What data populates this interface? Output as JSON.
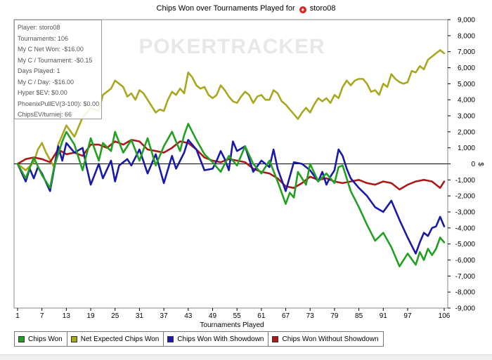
{
  "chart_data": {
    "type": "line",
    "title": "Chips Won over Tournaments Played for",
    "player_name": "storo08",
    "watermark": "POKERTRACKER",
    "xlabel": "Tournaments Played",
    "ylabel": "$",
    "xlim": [
      1,
      106
    ],
    "ylim": [
      -9000,
      9000
    ],
    "x_ticks": [
      1,
      7,
      13,
      19,
      25,
      31,
      37,
      43,
      49,
      55,
      61,
      67,
      73,
      79,
      85,
      91,
      97,
      106
    ],
    "y_ticks": [
      -9000,
      -8000,
      -7000,
      -6000,
      -5000,
      -4000,
      -3000,
      -2000,
      -1000,
      0,
      1000,
      2000,
      3000,
      4000,
      5000,
      6000,
      7000,
      8000,
      9000
    ],
    "y_tick_labels": [
      "-9,000",
      "-8,000",
      "-7,000",
      "-6,000",
      "-5,000",
      "-4,000",
      "-3,000",
      "-2,000",
      "-1,000",
      "0",
      "1,000",
      "2,000",
      "3,000",
      "4,000",
      "5,000",
      "6,000",
      "7,000",
      "8,000",
      "9,000"
    ],
    "series": [
      {
        "name": "Chips Won",
        "color": "#22a022",
        "x": [
          1,
          3,
          5,
          7,
          9,
          10,
          12,
          13,
          15,
          17,
          19,
          21,
          22,
          24,
          25,
          27,
          29,
          31,
          33,
          35,
          37,
          39,
          41,
          42,
          43,
          45,
          47,
          49,
          51,
          53,
          55,
          57,
          59,
          61,
          63,
          65,
          67,
          68,
          69,
          70,
          72,
          73,
          75,
          77,
          79,
          80,
          81,
          83,
          85,
          87,
          89,
          91,
          93,
          95,
          97,
          99,
          100,
          101,
          102,
          103,
          104,
          105,
          106
        ],
        "values": [
          0,
          -900,
          400,
          -700,
          -1500,
          -200,
          1400,
          2000,
          1200,
          -400,
          1600,
          200,
          1300,
          800,
          2000,
          700,
          1500,
          200,
          1600,
          -100,
          1100,
          2000,
          800,
          1800,
          2500,
          1500,
          600,
          100,
          -500,
          500,
          -100,
          1100,
          0,
          -600,
          200,
          -1100,
          -2500,
          -1800,
          -2100,
          -500,
          -1300,
          0,
          -1100,
          -600,
          -1200,
          -200,
          -100,
          -1700,
          -2700,
          -3800,
          -4800,
          -4300,
          -5200,
          -6400,
          -5600,
          -6300,
          -5500,
          -6000,
          -5300,
          -5700,
          -5300,
          -4600,
          -4900
        ]
      },
      {
        "name": "Net Expected Chips Won",
        "color": "#a8a820",
        "x": [
          1,
          3,
          5,
          6,
          7,
          8,
          10,
          11,
          13,
          15,
          17,
          18,
          19,
          21,
          22,
          24,
          25,
          27,
          28,
          29,
          30,
          31,
          32,
          34,
          35,
          36,
          37,
          38,
          39,
          40,
          41,
          42,
          43,
          44,
          45,
          46,
          47,
          48,
          49,
          50,
          51,
          52,
          53,
          54,
          55,
          56,
          57,
          58,
          59,
          60,
          61,
          62,
          63,
          64,
          65,
          66,
          67,
          68,
          69,
          70,
          71,
          72,
          73,
          74,
          75,
          76,
          77,
          78,
          79,
          80,
          81,
          82,
          83,
          84,
          85,
          86,
          87,
          88,
          89,
          90,
          91,
          92,
          93,
          94,
          95,
          96,
          97,
          98,
          99,
          100,
          101,
          102,
          103,
          104,
          105,
          106
        ],
        "values": [
          0,
          -400,
          100,
          900,
          1300,
          700,
          -200,
          1200,
          2400,
          1700,
          2900,
          3200,
          3500,
          3300,
          4300,
          4700,
          5200,
          4800,
          4200,
          4400,
          4000,
          4600,
          4400,
          3600,
          3200,
          3400,
          3300,
          4000,
          4500,
          4300,
          4700,
          4400,
          5700,
          5400,
          4900,
          4700,
          4800,
          4300,
          4100,
          4300,
          4900,
          4600,
          4200,
          3900,
          3800,
          4200,
          4500,
          4300,
          3800,
          4200,
          4300,
          4000,
          4000,
          4600,
          4400,
          3900,
          3700,
          3400,
          3100,
          2800,
          3200,
          3500,
          3200,
          3700,
          4100,
          3900,
          4100,
          3800,
          4300,
          4100,
          4800,
          5200,
          4900,
          5200,
          5300,
          5300,
          5000,
          4500,
          4600,
          4300,
          5000,
          4800,
          5600,
          5300,
          5100,
          5000,
          5100,
          5800,
          5700,
          6100,
          5900,
          6500,
          6700,
          6900,
          7100,
          6900
        ]
      },
      {
        "name": "Chips Won With Showdown",
        "color": "#1a1aa8",
        "x": [
          1,
          3,
          4,
          5,
          6,
          7,
          9,
          11,
          12,
          13,
          15,
          17,
          18,
          19,
          21,
          22,
          24,
          25,
          26,
          28,
          29,
          31,
          33,
          35,
          37,
          39,
          40,
          42,
          43,
          45,
          47,
          49,
          50,
          51,
          52,
          53,
          54,
          55,
          57,
          59,
          61,
          63,
          64,
          65,
          67,
          69,
          71,
          73,
          75,
          76,
          77,
          78,
          79,
          80,
          81,
          82,
          83,
          85,
          87,
          89,
          91,
          93,
          95,
          97,
          99,
          100,
          101,
          102,
          103,
          104,
          105,
          106
        ],
        "values": [
          0,
          -1100,
          -300,
          -900,
          -200,
          -600,
          -1700,
          1100,
          200,
          1300,
          700,
          1000,
          -200,
          -1300,
          0,
          -900,
          200,
          -1100,
          -100,
          300,
          -100,
          900,
          -600,
          600,
          -1200,
          500,
          -300,
          700,
          1500,
          900,
          -400,
          -300,
          200,
          800,
          300,
          -400,
          1400,
          800,
          1100,
          -500,
          200,
          -200,
          900,
          -300,
          -1700,
          100,
          0,
          -400,
          -1100,
          -500,
          -1300,
          -800,
          -400,
          900,
          500,
          -300,
          -900,
          -1500,
          -2000,
          -2700,
          -3000,
          -2300,
          -3500,
          -4600,
          -5600,
          -4900,
          -4300,
          -4500,
          -4000,
          -3900,
          -3300,
          -3900
        ]
      },
      {
        "name": "Chips Won Without Showdown",
        "color": "#aa1a1a",
        "x": [
          1,
          3,
          5,
          7,
          9,
          11,
          13,
          15,
          17,
          19,
          21,
          23,
          25,
          27,
          29,
          31,
          33,
          35,
          37,
          39,
          41,
          43,
          45,
          47,
          49,
          51,
          53,
          55,
          57,
          59,
          61,
          63,
          65,
          67,
          69,
          71,
          73,
          75,
          77,
          79,
          81,
          83,
          85,
          87,
          89,
          91,
          93,
          95,
          97,
          99,
          101,
          103,
          105,
          106
        ],
        "values": [
          0,
          300,
          400,
          300,
          100,
          900,
          600,
          700,
          500,
          1200,
          1200,
          1000,
          1400,
          1200,
          1500,
          1400,
          900,
          800,
          700,
          1000,
          1400,
          1300,
          900,
          400,
          200,
          100,
          300,
          200,
          100,
          -300,
          -500,
          -600,
          -900,
          -1400,
          -1500,
          -1200,
          -800,
          -1000,
          -900,
          -1100,
          -1200,
          -1100,
          -1000,
          -1200,
          -1300,
          -1100,
          -1200,
          -1600,
          -1300,
          -1100,
          -1000,
          -1100,
          -1500,
          -1100
        ]
      }
    ],
    "info_box": {
      "player": "Player: storo08",
      "tournaments": "Tournaments: 106",
      "net_won": "My C Net Won: -$16.00",
      "per_tournament": "My C / Tournament: -$0.15",
      "days_played": "Days Played: 1",
      "per_day": "My C / Day: -$16.00",
      "hyper_ev": "Hyper $EV: $0.00",
      "phoenix_ev": "PhoenixPullEV(3-100): $0.00",
      "chips_ev": "ChipsEV/turniej: 66"
    },
    "legend": {
      "position": "bottom-left",
      "items": [
        {
          "label": "Chips Won",
          "color": "#22a022"
        },
        {
          "label": "Net Expected Chips Won",
          "color": "#a8a820"
        },
        {
          "label": "Chips Won With Showdown",
          "color": "#1a1aa8"
        },
        {
          "label": "Chips Won Without Showdown",
          "color": "#aa1a1a"
        }
      ]
    }
  }
}
